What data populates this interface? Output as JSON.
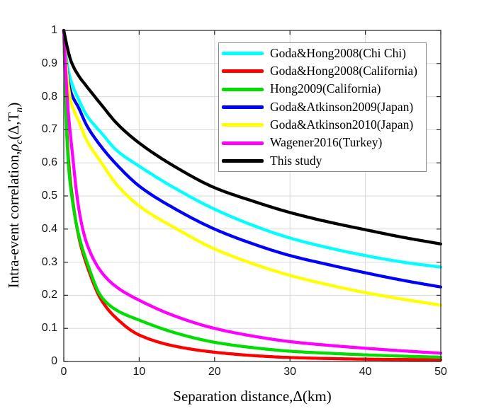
{
  "chart_data": {
    "type": "line",
    "title": "",
    "xlabel": "Separation distance,Δ(km)",
    "ylabel": "Intra-event correlation,ρc(Δ,Tn)",
    "ylabel_parts": {
      "pre": "Intra-event correlation,",
      "rho": "ρ",
      "rho_sub": "c",
      "mid": "(Δ,T",
      "t_sub": "n",
      "post": ")"
    },
    "xlim": [
      0,
      50
    ],
    "ylim": [
      0,
      1
    ],
    "xticks": [
      0,
      10,
      20,
      30,
      40,
      50
    ],
    "xtick_labels": [
      "0",
      "10",
      "20",
      "30",
      "40",
      "50"
    ],
    "yticks": [
      0,
      0.1,
      0.2,
      0.3,
      0.4,
      0.5,
      0.6,
      0.7,
      0.8,
      0.9,
      1
    ],
    "ytick_labels": [
      "0",
      "0.1",
      "0.2",
      "0.3",
      "0.4",
      "0.5",
      "0.6",
      "0.7",
      "0.8",
      "0.9",
      "1"
    ],
    "grid": true,
    "legend_position": "upper-right-inside",
    "axis_color": "#262626",
    "grid_color": "#d9d9d9",
    "x": [
      0,
      0.5,
      1,
      2,
      3,
      5,
      7,
      10,
      15,
      20,
      25,
      30,
      35,
      40,
      45,
      50
    ],
    "series": [
      {
        "name": "Goda&Hong2008(Chi Chi)",
        "color": "#00ffff",
        "values": [
          1,
          0.89,
          0.845,
          0.79,
          0.745,
          0.69,
          0.638,
          0.59,
          0.52,
          0.46,
          0.412,
          0.373,
          0.344,
          0.32,
          0.3,
          0.285
        ]
      },
      {
        "name": "Goda&Hong2008(California)",
        "color": "#ff0000",
        "values": [
          1,
          0.65,
          0.52,
          0.375,
          0.295,
          0.185,
          0.13,
          0.08,
          0.045,
          0.028,
          0.018,
          0.012,
          0.009,
          0.007,
          0.006,
          0.005
        ]
      },
      {
        "name": "Hong2009(California)",
        "color": "#00dd00",
        "values": [
          1,
          0.63,
          0.51,
          0.38,
          0.305,
          0.195,
          0.155,
          0.125,
          0.085,
          0.058,
          0.042,
          0.031,
          0.025,
          0.02,
          0.016,
          0.013
        ]
      },
      {
        "name": "Goda&Atkinson2009(Japan)",
        "color": "#0000ff",
        "values": [
          1,
          0.86,
          0.81,
          0.765,
          0.715,
          0.648,
          0.595,
          0.53,
          0.458,
          0.4,
          0.356,
          0.32,
          0.293,
          0.268,
          0.245,
          0.225
        ]
      },
      {
        "name": "Goda&Atkinson2010(Japan)",
        "color": "#ffff00",
        "values": [
          1,
          0.85,
          0.78,
          0.725,
          0.67,
          0.6,
          0.535,
          0.47,
          0.4,
          0.34,
          0.296,
          0.26,
          0.232,
          0.208,
          0.188,
          0.17
        ]
      },
      {
        "name": "Wagener2016(Turkey)",
        "color": "#ff00ff",
        "values": [
          1,
          0.78,
          0.66,
          0.46,
          0.36,
          0.27,
          0.225,
          0.185,
          0.135,
          0.1,
          0.077,
          0.06,
          0.049,
          0.04,
          0.032,
          0.025
        ]
      },
      {
        "name": "This study",
        "color": "#000000",
        "values": [
          1,
          0.945,
          0.905,
          0.862,
          0.832,
          0.775,
          0.72,
          0.66,
          0.585,
          0.525,
          0.485,
          0.45,
          0.422,
          0.398,
          0.375,
          0.355
        ]
      }
    ]
  }
}
